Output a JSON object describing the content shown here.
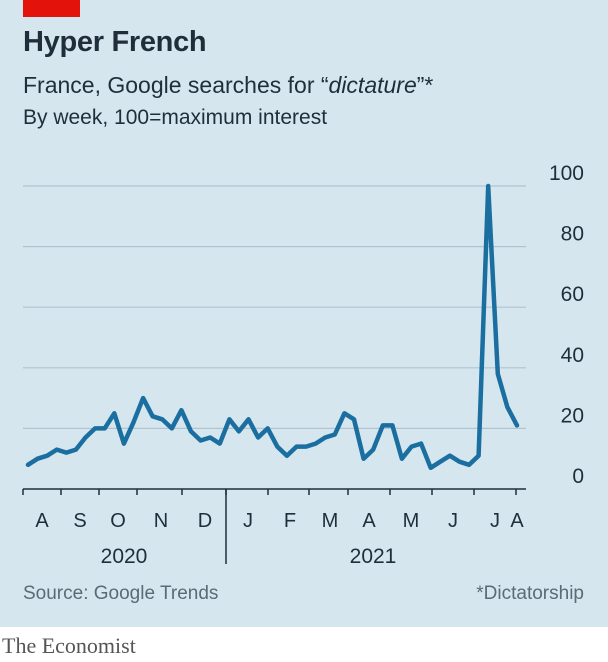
{
  "header": {
    "title": "Hyper French",
    "subtitle_prefix": "France, Google searches for “",
    "subtitle_term": "dictature",
    "subtitle_suffix": "”*",
    "note": "By week, 100=maximum interest"
  },
  "footer": {
    "source": "Source: Google Trends",
    "footnote": "*Dictatorship",
    "brand": "The Economist"
  },
  "colors": {
    "background": "#d6e6ef",
    "line": "#1a6fa0",
    "accent": "#e3120b"
  },
  "chart_data": {
    "type": "line",
    "ylim": [
      0,
      100
    ],
    "yticks": [
      0,
      20,
      40,
      60,
      80,
      100
    ],
    "grid": true,
    "months": [
      "A",
      "S",
      "O",
      "N",
      "D",
      "J",
      "F",
      "M",
      "A",
      "M",
      "J",
      "J",
      "A"
    ],
    "years": [
      "2020",
      "2021"
    ],
    "series": [
      {
        "values": [
          8,
          10,
          11,
          13,
          12,
          13,
          17,
          20,
          20,
          25,
          15,
          22,
          30,
          24,
          23,
          20,
          26,
          19,
          16,
          17,
          15,
          23,
          19,
          23,
          17,
          20,
          14,
          11,
          14,
          14,
          15,
          17,
          18,
          25,
          23,
          10,
          13,
          21,
          21,
          10,
          14,
          15,
          7,
          9,
          11,
          9,
          8,
          11,
          100,
          38,
          27,
          21
        ]
      }
    ]
  }
}
